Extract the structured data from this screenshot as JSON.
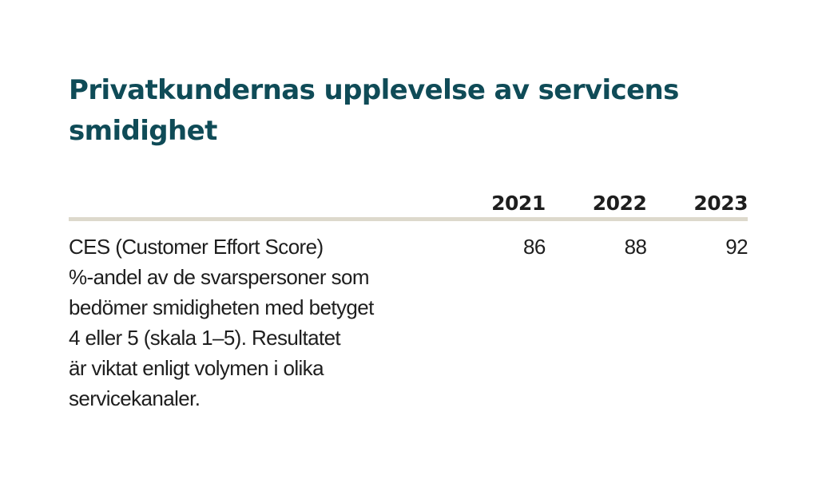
{
  "title": "Privatkundernas upplevelse av servicens smidighet",
  "table": {
    "columns": [
      "2021",
      "2022",
      "2023"
    ],
    "rows": [
      {
        "label_lines": [
          "CES (Customer Effort Score)",
          "%-andel av de svarspersoner som",
          "bedömer smidigheten med betyget",
          "4 eller 5 (skala 1–5). Resultatet",
          "är viktat enligt volymen i olika",
          "servicekanaler."
        ],
        "values": [
          "86",
          "88",
          "92"
        ]
      }
    ]
  },
  "colors": {
    "title": "#0f4b57",
    "rule": "#ddd9cc",
    "text": "#1e1e1e"
  }
}
